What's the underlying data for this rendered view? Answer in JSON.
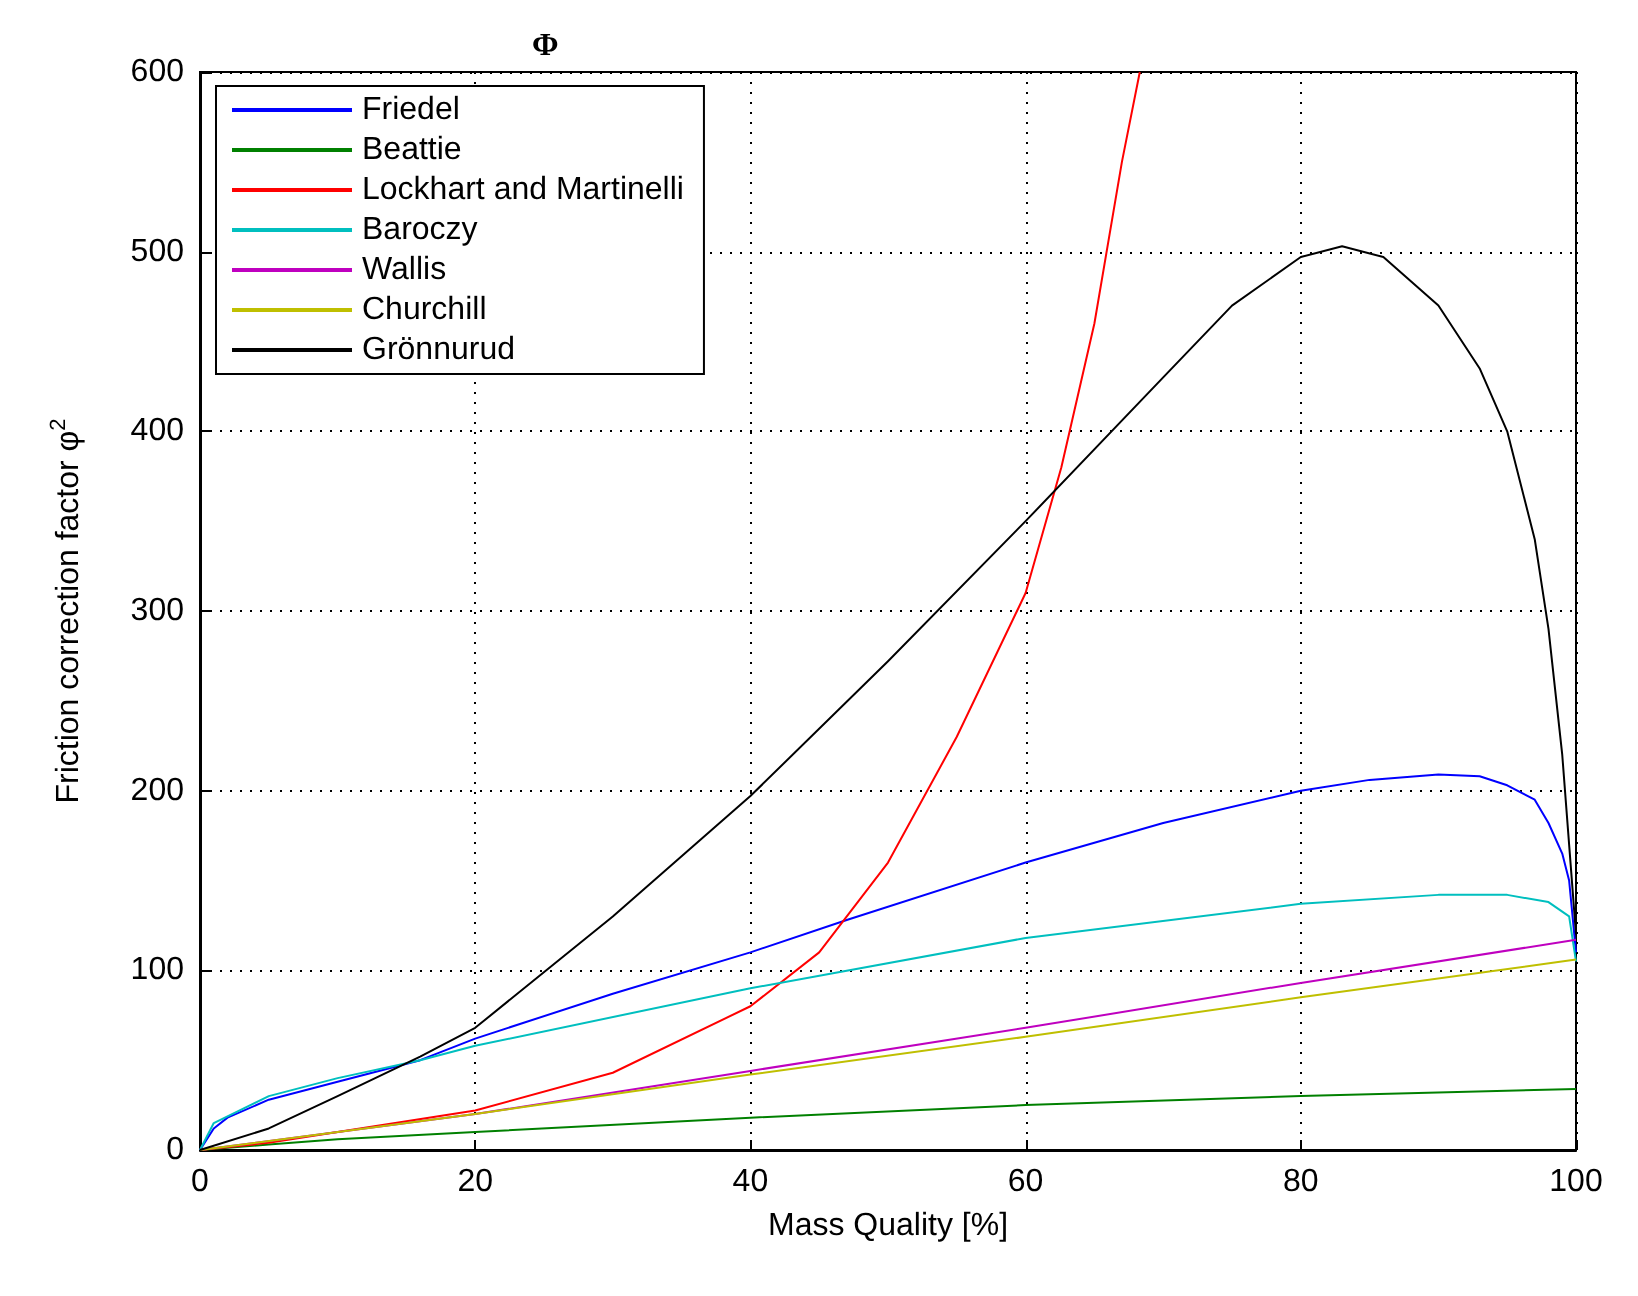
{
  "chart_data": {
    "type": "line",
    "title": "Φ",
    "xlabel": "Mass Quality [%]",
    "ylabel": "Friction correction factor φ$^{2}$",
    "xlim": [
      0,
      100
    ],
    "ylim": [
      0,
      600
    ],
    "xticks": [
      0,
      20,
      40,
      60,
      80,
      100
    ],
    "yticks": [
      0,
      100,
      200,
      300,
      400,
      500,
      600
    ],
    "grid": true,
    "legend": "top left",
    "marker": "none",
    "line_style": "solid",
    "series": [
      {
        "name": "Friedel",
        "color": "#0000ff",
        "x": [
          0,
          1,
          2,
          5,
          10,
          16,
          20,
          30,
          40,
          47,
          60,
          70,
          80,
          85,
          90,
          93,
          95,
          97,
          98,
          99,
          99.5,
          100
        ],
        "values": [
          0,
          12,
          18,
          28,
          38,
          50,
          62,
          87,
          110,
          128,
          160,
          182,
          200,
          206,
          209,
          208,
          203,
          195,
          182,
          165,
          150,
          110
        ]
      },
      {
        "name": "Beattie",
        "color": "#008000",
        "x": [
          0,
          5,
          10,
          20,
          40,
          60,
          80,
          100
        ],
        "values": [
          0,
          3,
          6,
          10,
          18,
          25,
          30,
          34
        ]
      },
      {
        "name": "Lockhart and Martinelli",
        "color": "#ff0000",
        "x": [
          0,
          5,
          10,
          20,
          30,
          40,
          45,
          50,
          55,
          60,
          62.6,
          65,
          67,
          68.3
        ],
        "values": [
          0,
          4,
          10,
          22,
          43,
          80,
          110,
          160,
          230,
          310,
          380,
          460,
          550,
          600
        ]
      },
      {
        "name": "Baroczy",
        "color": "#00bfbf",
        "x": [
          0,
          1,
          5,
          10,
          16,
          20,
          40,
          60,
          80,
          90,
          95,
          98,
          99.5,
          100
        ],
        "values": [
          0,
          15,
          30,
          40,
          50,
          58,
          90,
          118,
          137,
          142,
          142,
          138,
          130,
          105
        ]
      },
      {
        "name": "Wallis",
        "color": "#bf00bf",
        "x": [
          0,
          20,
          40,
          60,
          80,
          100
        ],
        "values": [
          0,
          20,
          44,
          68,
          93,
          117
        ]
      },
      {
        "name": "Churchill",
        "color": "#bfbf00",
        "x": [
          0,
          20,
          40,
          60,
          80,
          100
        ],
        "values": [
          0,
          20,
          42,
          63,
          85,
          106
        ]
      },
      {
        "name": "Grönnurud",
        "color": "#000000",
        "x": [
          0,
          5,
          10,
          16,
          20,
          30,
          40,
          50,
          60,
          70,
          75,
          80,
          83,
          86,
          90,
          93,
          95,
          97,
          98,
          99,
          100
        ],
        "values": [
          0,
          12,
          30,
          52,
          68,
          130,
          197,
          272,
          350,
          430,
          470,
          497,
          503,
          497,
          470,
          435,
          400,
          340,
          290,
          220,
          120
        ]
      }
    ]
  }
}
